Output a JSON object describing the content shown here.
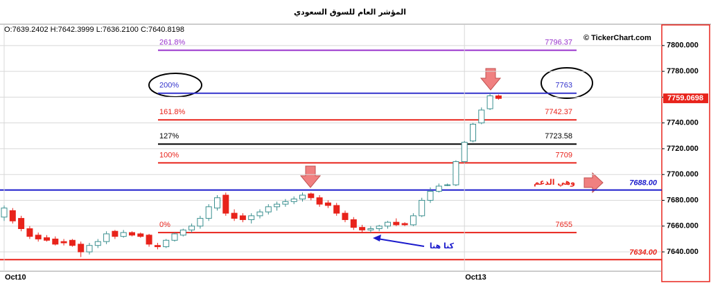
{
  "chart_data": {
    "type": "candlestick",
    "title": "المؤشر العام للسوق السعودي",
    "ohlc_text": "O:7639.2402 H:7642.3999 L:7636.2100 C:7640.8198",
    "watermark": "© TickerChart.com",
    "categories": [
      "Oct10",
      null,
      null,
      null,
      null,
      null,
      null,
      null,
      null,
      null,
      null,
      null,
      null,
      null,
      null,
      null,
      null,
      null,
      null,
      null,
      null,
      null,
      null,
      null,
      null,
      null,
      null,
      null,
      null,
      null,
      null,
      null,
      null,
      null,
      null,
      null,
      null,
      null,
      null,
      null,
      null,
      null,
      null,
      null,
      null,
      null,
      null,
      null,
      null,
      null,
      null,
      null,
      null,
      null,
      "Oct13",
      null,
      null,
      null,
      null
    ],
    "open": [
      7667,
      7672,
      7666,
      7658,
      7653,
      7651,
      7650,
      7648,
      7649,
      7646,
      7640,
      7645,
      7648,
      7656,
      7652,
      7655,
      7654,
      7653,
      7645,
      7644,
      7649,
      7653,
      7657,
      7660,
      7666,
      7674,
      7684,
      7670,
      7668,
      7665,
      7668,
      7671,
      7675,
      7677,
      7679,
      7681,
      7685,
      7682,
      7678,
      7676,
      7670,
      7665,
      7659,
      7657,
      7658,
      7660,
      7663,
      7662,
      7661,
      7668,
      7680,
      7687,
      7692,
      7692,
      7710,
      7726,
      7740,
      7751,
      7761
    ],
    "high": [
      7676,
      7674,
      7668,
      7660,
      7655,
      7653,
      7652,
      7650,
      7650,
      7648,
      7647,
      7650,
      7656,
      7657,
      7657,
      7656,
      7655,
      7654,
      7647,
      7650,
      7655,
      7658,
      7662,
      7668,
      7677,
      7684,
      7686,
      7673,
      7670,
      7670,
      7673,
      7677,
      7679,
      7681,
      7683,
      7686,
      7686,
      7684,
      7680,
      7678,
      7672,
      7667,
      7661,
      7660,
      7661,
      7664,
      7666,
      7663,
      7670,
      7682,
      7690,
      7693,
      7693,
      7711,
      7726,
      7740,
      7752,
      7763,
      7762
    ],
    "low": [
      7664,
      7662,
      7656,
      7650,
      7648,
      7648,
      7645,
      7645,
      7644,
      7636,
      7638,
      7643,
      7646,
      7650,
      7651,
      7652,
      7651,
      7644,
      7642,
      7643,
      7648,
      7652,
      7655,
      7658,
      7664,
      7672,
      7668,
      7664,
      7663,
      7662,
      7666,
      7669,
      7672,
      7675,
      7677,
      7679,
      7680,
      7675,
      7674,
      7668,
      7663,
      7657,
      7655,
      7655,
      7656,
      7658,
      7660,
      7660,
      7660,
      7667,
      7678,
      7686,
      7691,
      7691,
      7709,
      7725,
      7739,
      7750,
      7758
    ],
    "close": [
      7674,
      7664,
      7658,
      7652,
      7650,
      7649,
      7646,
      7647,
      7645,
      7640,
      7645,
      7648,
      7654,
      7652,
      7655,
      7653,
      7652,
      7646,
      7644,
      7649,
      7654,
      7657,
      7660,
      7666,
      7675,
      7682,
      7670,
      7666,
      7665,
      7668,
      7671,
      7675,
      7677,
      7679,
      7681,
      7684,
      7682,
      7677,
      7676,
      7670,
      7665,
      7659,
      7657,
      7658,
      7660,
      7663,
      7661,
      7661,
      7668,
      7680,
      7687,
      7691,
      7692,
      7710,
      7725,
      7739,
      7750,
      7761,
      7759
    ],
    "up_color": "#3a8f8f",
    "down_color": "#e8231b",
    "ylim": [
      7625,
      7816
    ],
    "yticks": [
      {
        "value": 7640,
        "label": "7640.000"
      },
      {
        "value": 7660,
        "label": "7660.000"
      },
      {
        "value": 7680,
        "label": "7680.000"
      },
      {
        "value": 7700,
        "label": "7700.000"
      },
      {
        "value": 7720,
        "label": "7720.000"
      },
      {
        "value": 7740,
        "label": "7740.000"
      },
      {
        "value": 7760,
        "label": "7760.000"
      },
      {
        "value": 7780,
        "label": "7780.000"
      },
      {
        "value": 7800,
        "label": "7800.000"
      }
    ],
    "grid": true,
    "fib_levels": [
      {
        "label": "261.8%",
        "value": 7796.37,
        "color": "#9933cc"
      },
      {
        "label": "200%",
        "value": 7763,
        "color": "#3333cc"
      },
      {
        "label": "161.8%",
        "value": 7742.37,
        "color": "#e8231b"
      },
      {
        "label": "127%",
        "value": 7723.58,
        "color": "#000000"
      },
      {
        "label": "100%",
        "value": 7709,
        "color": "#e8231b"
      },
      {
        "label": "0%",
        "value": 7655,
        "color": "#e8231b"
      }
    ],
    "support_lines": [
      {
        "value": 7688,
        "label": "7688.00",
        "color": "#1a1acc"
      },
      {
        "value": 7634,
        "label": "7634.00",
        "color": "#e8231b"
      }
    ],
    "current_price": 7759.0698,
    "annotations": [
      "وهي الدعم",
      "كنا هنا"
    ]
  }
}
